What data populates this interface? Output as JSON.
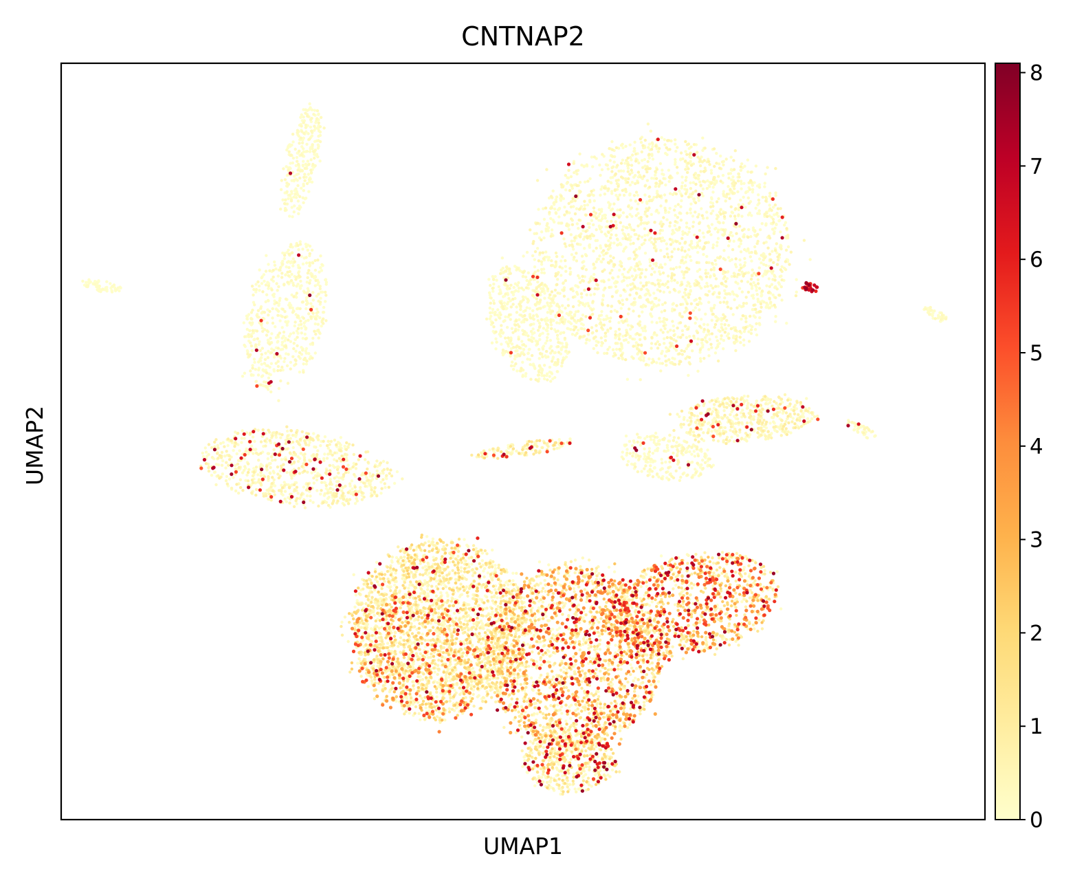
{
  "chart_data": {
    "type": "scatter",
    "title": "CNTNAP2",
    "xlabel": "UMAP1",
    "ylabel": "UMAP2",
    "x_ticks_shown": false,
    "y_ticks_shown": false,
    "grid": false,
    "colormap": {
      "name": "YlOrRd",
      "stops": [
        "#ffffcc",
        "#ffeda0",
        "#fed976",
        "#feb24c",
        "#fd8d3c",
        "#fc4e2a",
        "#e31a1c",
        "#bd0026",
        "#800026"
      ],
      "vmin": 0,
      "vmax": 8.1,
      "ticks": [
        "0",
        "1",
        "2",
        "3",
        "4",
        "5",
        "6",
        "7",
        "8"
      ],
      "placement": "right"
    },
    "xlim": [
      0,
      100
    ],
    "ylim": [
      0,
      100
    ],
    "clusters": [
      {
        "id": "top-left-streak",
        "cx": 26.0,
        "cy": 87.0,
        "rx": 1.8,
        "ry": 7.5,
        "angle": -10,
        "n": 260,
        "mean_expr": 0.2,
        "hot_frac": 0.01
      },
      {
        "id": "left-island",
        "cx": 4.5,
        "cy": 70.5,
        "rx": 2.3,
        "ry": 0.7,
        "angle": -15,
        "n": 60,
        "mean_expr": 0.1,
        "hot_frac": 0.0
      },
      {
        "id": "left-mid",
        "cx": 24.3,
        "cy": 66.5,
        "rx": 4.2,
        "ry": 10.0,
        "angle": -10,
        "n": 560,
        "mean_expr": 0.25,
        "hot_frac": 0.012
      },
      {
        "id": "top-center-big",
        "cx": 65.0,
        "cy": 75.0,
        "rx": 14.0,
        "ry": 15.0,
        "angle": 0,
        "n": 2400,
        "mean_expr": 0.35,
        "hot_frac": 0.02
      },
      {
        "id": "top-center-arc",
        "cx": 50.5,
        "cy": 65.5,
        "rx": 4.0,
        "ry": 8.0,
        "angle": 15,
        "n": 520,
        "mean_expr": 0.25,
        "hot_frac": 0.012
      },
      {
        "id": "small-hot-right",
        "cx": 81.2,
        "cy": 70.5,
        "rx": 0.9,
        "ry": 0.8,
        "angle": 0,
        "n": 22,
        "mean_expr": 5.8,
        "hot_frac": 0.9
      },
      {
        "id": "far-right-streak",
        "cx": 94.7,
        "cy": 66.8,
        "rx": 1.6,
        "ry": 0.6,
        "angle": -35,
        "n": 40,
        "mean_expr": 0.2,
        "hot_frac": 0.03
      },
      {
        "id": "right-mid",
        "cx": 74.0,
        "cy": 53.0,
        "rx": 7.5,
        "ry": 3.0,
        "angle": 5,
        "n": 520,
        "mean_expr": 0.6,
        "hot_frac": 0.05
      },
      {
        "id": "right-mid-small-streak",
        "cx": 86.7,
        "cy": 51.5,
        "rx": 2.1,
        "ry": 0.6,
        "angle": -35,
        "n": 45,
        "mean_expr": 0.3,
        "hot_frac": 0.03
      },
      {
        "id": "mid-center-small",
        "cx": 65.5,
        "cy": 48.0,
        "rx": 5.0,
        "ry": 3.0,
        "angle": -10,
        "n": 240,
        "mean_expr": 0.25,
        "hot_frac": 0.02
      },
      {
        "id": "left-lower",
        "cx": 25.5,
        "cy": 46.5,
        "rx": 10.5,
        "ry": 4.8,
        "angle": -10,
        "n": 820,
        "mean_expr": 0.5,
        "hot_frac": 0.06
      },
      {
        "id": "center-band",
        "cx": 50.0,
        "cy": 49.0,
        "rx": 5.5,
        "ry": 0.9,
        "angle": 10,
        "n": 130,
        "mean_expr": 1.0,
        "hot_frac": 0.05
      },
      {
        "id": "bottom-left-core",
        "cx": 41.0,
        "cy": 25.5,
        "rx": 9.5,
        "ry": 11.5,
        "angle": 0,
        "n": 2300,
        "mean_expr": 1.3,
        "hot_frac": 0.04
      },
      {
        "id": "bottom-left-rim",
        "cx": 38.5,
        "cy": 21.5,
        "rx": 6.5,
        "ry": 9.0,
        "angle": 25,
        "n": 560,
        "mean_expr": 3.0,
        "hot_frac": 0.05
      },
      {
        "id": "bottom-center",
        "cx": 55.5,
        "cy": 21.5,
        "rx": 9.5,
        "ry": 12.0,
        "angle": 0,
        "n": 2100,
        "mean_expr": 2.4,
        "hot_frac": 0.12
      },
      {
        "id": "bottom-right-lobe",
        "cx": 68.5,
        "cy": 28.5,
        "rx": 9.5,
        "ry": 6.5,
        "angle": 20,
        "n": 1000,
        "mean_expr": 3.2,
        "hot_frac": 0.14
      },
      {
        "id": "bottom-tail",
        "cx": 55.0,
        "cy": 7.8,
        "rx": 5.0,
        "ry": 4.2,
        "angle": 0,
        "n": 520,
        "mean_expr": 1.2,
        "hot_frac": 0.1
      }
    ]
  }
}
